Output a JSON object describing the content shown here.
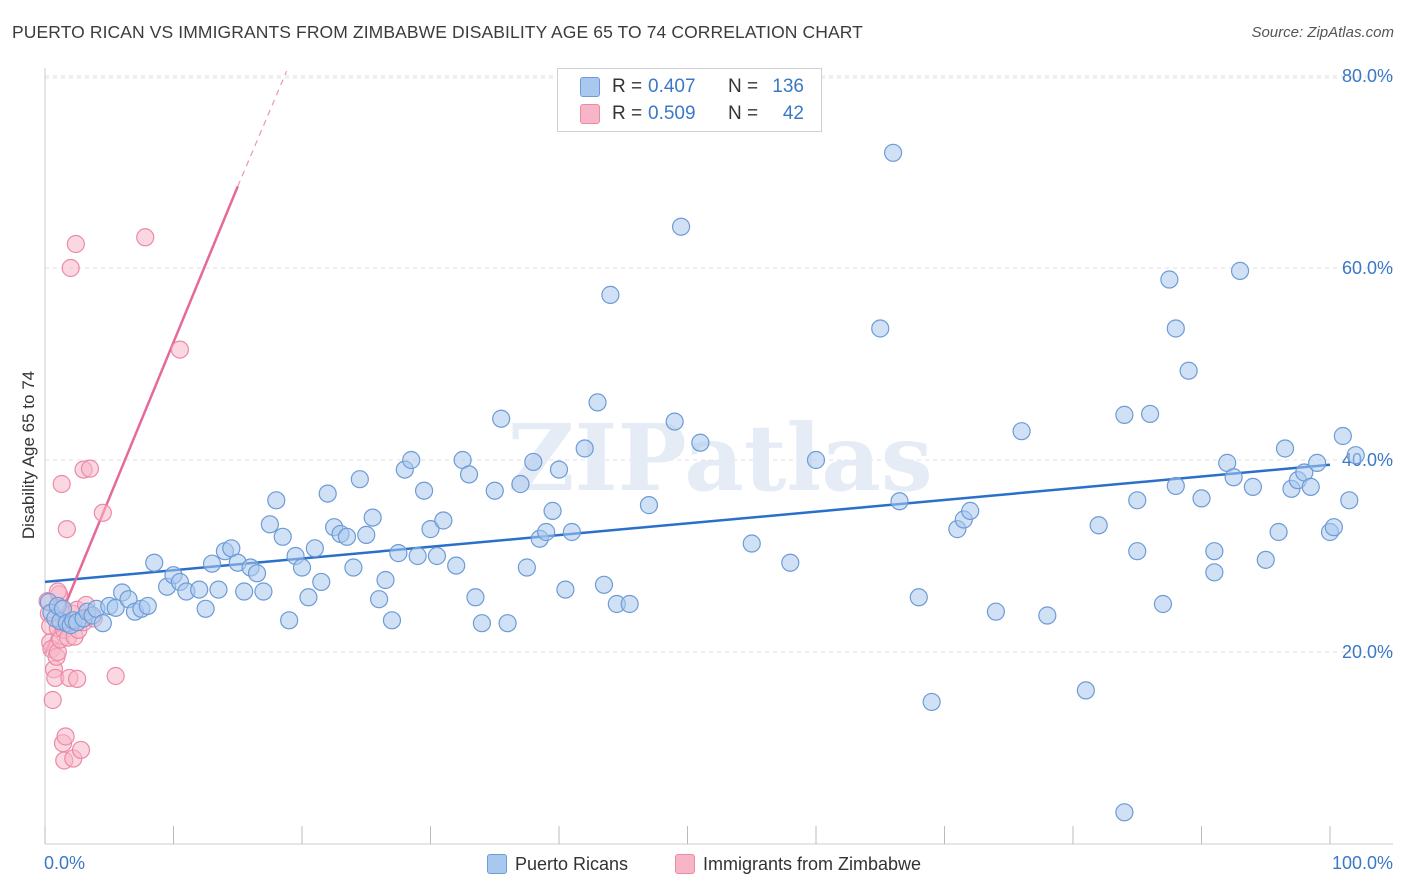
{
  "title": "PUERTO RICAN VS IMMIGRANTS FROM ZIMBABWE DISABILITY AGE 65 TO 74 CORRELATION CHART",
  "source": "Source: ZipAtlas.com",
  "watermark": "ZIPatlas",
  "legend": {
    "rows": [
      {
        "r_label": "R =",
        "r_value": "0.407",
        "n_label": "N =",
        "n_value": "136"
      },
      {
        "r_label": "R =",
        "r_value": "0.509",
        "n_label": "N =",
        "n_value": "42"
      }
    ]
  },
  "bottom_legend": [
    "Puerto Ricans",
    "Immigrants from Zimbabwe"
  ],
  "colors": {
    "blue_fill": "#a9c8ef",
    "blue_stroke": "#6d9bd6",
    "blue_line": "#2a6fc9",
    "pink_fill": "#f7b6c8",
    "pink_stroke": "#ec8aa6",
    "pink_line": "#e5699a",
    "axis_text": "#3b78c6",
    "grid": "#e0e0e0"
  },
  "chart_data": {
    "type": "scatter",
    "title": "PUERTO RICAN VS IMMIGRANTS FROM ZIMBABWE DISABILITY AGE 65 TO 74 CORRELATION CHART",
    "xlabel": "",
    "ylabel": "Disability Age 65 to 74",
    "xlim": [
      0,
      100
    ],
    "ylim": [
      0,
      83
    ],
    "x_tick_labels": [
      "0.0%",
      "100.0%"
    ],
    "y_ticks": [
      20,
      40,
      60,
      80
    ],
    "y_tick_labels": [
      "20.0%",
      "40.0%",
      "60.0%",
      "80.0%"
    ],
    "grid": true,
    "legend_position": "top-center",
    "series": [
      {
        "name": "Puerto Ricans",
        "trendline": {
          "x": [
            0,
            100
          ],
          "y": [
            27.3,
            39.5
          ]
        },
        "points": [
          [
            0.3,
            25.2
          ],
          [
            0.5,
            24.1
          ],
          [
            0.8,
            23.5
          ],
          [
            1.0,
            24.8
          ],
          [
            1.2,
            23.2
          ],
          [
            1.4,
            24.5
          ],
          [
            1.7,
            23.0
          ],
          [
            2.0,
            22.8
          ],
          [
            2.2,
            23.3
          ],
          [
            2.5,
            23.1
          ],
          [
            3.0,
            23.5
          ],
          [
            3.3,
            24.2
          ],
          [
            3.7,
            23.8
          ],
          [
            4.0,
            24.5
          ],
          [
            4.5,
            23.0
          ],
          [
            5.0,
            24.8
          ],
          [
            5.5,
            24.6
          ],
          [
            6.0,
            26.2
          ],
          [
            6.5,
            25.5
          ],
          [
            7.0,
            24.2
          ],
          [
            7.5,
            24.5
          ],
          [
            8.0,
            24.8
          ],
          [
            8.5,
            29.3
          ],
          [
            9.5,
            26.8
          ],
          [
            10.0,
            28.0
          ],
          [
            10.5,
            27.3
          ],
          [
            11.0,
            26.3
          ],
          [
            12.0,
            26.5
          ],
          [
            12.5,
            24.5
          ],
          [
            13.0,
            29.2
          ],
          [
            13.5,
            26.5
          ],
          [
            14.0,
            30.5
          ],
          [
            14.5,
            30.8
          ],
          [
            15.0,
            29.3
          ],
          [
            15.5,
            26.3
          ],
          [
            16.0,
            28.8
          ],
          [
            16.5,
            28.2
          ],
          [
            17.0,
            26.3
          ],
          [
            17.5,
            33.3
          ],
          [
            18.0,
            35.8
          ],
          [
            18.5,
            32.0
          ],
          [
            19.0,
            23.3
          ],
          [
            19.5,
            30.0
          ],
          [
            20.0,
            28.8
          ],
          [
            20.5,
            25.7
          ],
          [
            21.0,
            30.8
          ],
          [
            21.5,
            27.3
          ],
          [
            22.0,
            36.5
          ],
          [
            22.5,
            33.0
          ],
          [
            23.0,
            32.3
          ],
          [
            23.5,
            32.0
          ],
          [
            24.0,
            28.8
          ],
          [
            24.5,
            38.0
          ],
          [
            25.0,
            32.2
          ],
          [
            25.5,
            34.0
          ],
          [
            26.0,
            25.5
          ],
          [
            26.5,
            27.5
          ],
          [
            27.0,
            23.3
          ],
          [
            27.5,
            30.3
          ],
          [
            28.0,
            39.0
          ],
          [
            28.5,
            40.0
          ],
          [
            29.0,
            30.0
          ],
          [
            29.5,
            36.8
          ],
          [
            30.0,
            32.8
          ],
          [
            30.5,
            30.0
          ],
          [
            31.0,
            33.7
          ],
          [
            32.0,
            29.0
          ],
          [
            32.5,
            40.0
          ],
          [
            33.0,
            38.5
          ],
          [
            33.5,
            25.7
          ],
          [
            34.0,
            23.0
          ],
          [
            35.0,
            36.8
          ],
          [
            35.5,
            44.3
          ],
          [
            36.0,
            23.0
          ],
          [
            37.0,
            37.5
          ],
          [
            37.5,
            28.8
          ],
          [
            38.0,
            39.8
          ],
          [
            38.5,
            31.8
          ],
          [
            39.0,
            32.5
          ],
          [
            39.5,
            34.7
          ],
          [
            40.0,
            39.0
          ],
          [
            40.5,
            26.5
          ],
          [
            41.0,
            32.5
          ],
          [
            42.0,
            41.2
          ],
          [
            43.0,
            46.0
          ],
          [
            43.5,
            27.0
          ],
          [
            44.0,
            57.2
          ],
          [
            44.5,
            25.0
          ],
          [
            45.5,
            25.0
          ],
          [
            47.0,
            35.3
          ],
          [
            49.0,
            44.0
          ],
          [
            49.5,
            64.3
          ],
          [
            51.0,
            41.8
          ],
          [
            55.0,
            31.3
          ],
          [
            58.0,
            29.3
          ],
          [
            60.0,
            40.0
          ],
          [
            65.0,
            53.7
          ],
          [
            66.0,
            72.0
          ],
          [
            66.5,
            35.7
          ],
          [
            68.0,
            25.7
          ],
          [
            69.0,
            14.8
          ],
          [
            71.0,
            32.8
          ],
          [
            71.5,
            33.8
          ],
          [
            72.0,
            34.7
          ],
          [
            74.0,
            24.2
          ],
          [
            76.0,
            43.0
          ],
          [
            78.0,
            23.8
          ],
          [
            81.0,
            16.0
          ],
          [
            82.0,
            33.2
          ],
          [
            84.0,
            3.3
          ],
          [
            84.0,
            44.7
          ],
          [
            85.0,
            35.8
          ],
          [
            85.0,
            30.5
          ],
          [
            86.0,
            44.8
          ],
          [
            87.0,
            25.0
          ],
          [
            88.0,
            37.3
          ],
          [
            87.5,
            58.8
          ],
          [
            88.0,
            53.7
          ],
          [
            89.0,
            49.3
          ],
          [
            90.0,
            36.0
          ],
          [
            91.0,
            28.3
          ],
          [
            91.0,
            30.5
          ],
          [
            92.0,
            39.7
          ],
          [
            92.5,
            38.2
          ],
          [
            93.0,
            59.7
          ],
          [
            94.0,
            37.2
          ],
          [
            95.0,
            29.6
          ],
          [
            96.0,
            32.5
          ],
          [
            96.5,
            41.2
          ],
          [
            97.0,
            37.0
          ],
          [
            97.5,
            37.9
          ],
          [
            98.0,
            38.7
          ],
          [
            98.5,
            37.2
          ],
          [
            99.0,
            39.7
          ],
          [
            100.0,
            32.5
          ],
          [
            100.3,
            33.0
          ],
          [
            101.0,
            42.5
          ],
          [
            101.5,
            35.8
          ],
          [
            102.0,
            40.5
          ]
        ]
      },
      {
        "name": "Immigrants from Zimbabwe",
        "trendline": {
          "x": [
            0,
            15
          ],
          "y": [
            19.8,
            68.5
          ],
          "dashed_to": {
            "x": 18.8,
            "y": 80.5
          }
        },
        "points": [
          [
            0.2,
            25.3
          ],
          [
            0.3,
            24.0
          ],
          [
            0.4,
            22.7
          ],
          [
            0.4,
            21.0
          ],
          [
            0.5,
            20.3
          ],
          [
            0.6,
            15.0
          ],
          [
            0.7,
            18.2
          ],
          [
            0.8,
            17.3
          ],
          [
            0.9,
            19.5
          ],
          [
            1.0,
            20.0
          ],
          [
            1.0,
            22.5
          ],
          [
            1.1,
            26.0
          ],
          [
            1.2,
            24.6
          ],
          [
            1.2,
            21.3
          ],
          [
            1.3,
            37.5
          ],
          [
            1.4,
            10.5
          ],
          [
            1.5,
            8.7
          ],
          [
            1.5,
            22.3
          ],
          [
            1.6,
            11.2
          ],
          [
            1.7,
            32.8
          ],
          [
            1.8,
            21.5
          ],
          [
            1.8,
            23.0
          ],
          [
            1.9,
            17.3
          ],
          [
            2.0,
            60.0
          ],
          [
            2.1,
            24.0
          ],
          [
            2.2,
            8.9
          ],
          [
            2.3,
            21.6
          ],
          [
            2.4,
            62.5
          ],
          [
            2.5,
            24.4
          ],
          [
            2.6,
            22.3
          ],
          [
            2.8,
            9.8
          ],
          [
            2.5,
            17.2
          ],
          [
            3.0,
            23.1
          ],
          [
            3.0,
            39.0
          ],
          [
            3.2,
            24.9
          ],
          [
            3.5,
            39.1
          ],
          [
            3.8,
            23.5
          ],
          [
            4.5,
            34.5
          ],
          [
            5.5,
            17.5
          ],
          [
            7.8,
            63.2
          ],
          [
            10.5,
            51.5
          ],
          [
            1.0,
            26.3
          ]
        ]
      }
    ]
  }
}
